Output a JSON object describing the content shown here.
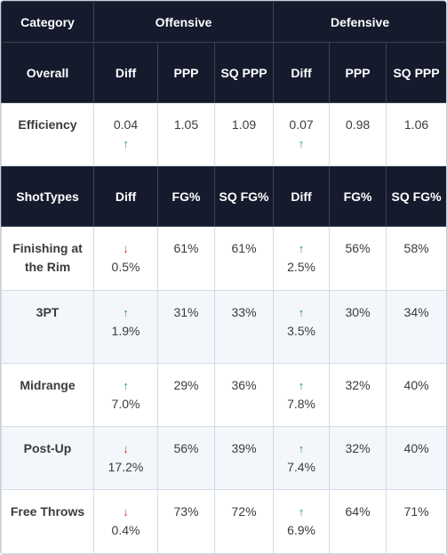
{
  "header": {
    "category": "Category",
    "offensive": "Offensive",
    "defensive": "Defensive"
  },
  "overall_header": {
    "label": "Overall",
    "off": [
      "Diff",
      "PPP",
      "SQ PPP"
    ],
    "def": [
      "Diff",
      "PPP",
      "SQ PPP"
    ]
  },
  "efficiency": {
    "label": "Efficiency",
    "off_diff": "0.04",
    "off_diff_dir": "up",
    "off_ppp": "1.05",
    "off_sq": "1.09",
    "def_diff": "0.07",
    "def_diff_dir": "up",
    "def_ppp": "0.98",
    "def_sq": "1.06"
  },
  "shot_header": {
    "label": "ShotTypes",
    "off": [
      "Diff",
      "FG%",
      "SQ FG%"
    ],
    "def": [
      "Diff",
      "FG%",
      "SQ FG%"
    ]
  },
  "arrows": {
    "up": "↑",
    "down": "↓"
  },
  "shot_rows": [
    {
      "label": "Finishing at the Rim",
      "off_dir": "down",
      "off_diff": "0.5%",
      "off_fg": "61%",
      "off_sq": "61%",
      "def_dir": "up",
      "def_diff": "2.5%",
      "def_fg": "56%",
      "def_sq": "58%"
    },
    {
      "label": "3PT",
      "off_dir": "up",
      "off_diff": "1.9%",
      "off_fg": "31%",
      "off_sq": "33%",
      "def_dir": "up",
      "def_diff": "3.5%",
      "def_fg": "30%",
      "def_sq": "34%"
    },
    {
      "label": "Midrange",
      "off_dir": "up",
      "off_diff": "7.0%",
      "off_fg": "29%",
      "off_sq": "36%",
      "def_dir": "up",
      "def_diff": "7.8%",
      "def_fg": "32%",
      "def_sq": "40%"
    },
    {
      "label": "Post-Up",
      "off_dir": "down",
      "off_diff": "17.2%",
      "off_fg": "56%",
      "off_sq": "39%",
      "def_dir": "up",
      "def_diff": "7.4%",
      "def_fg": "32%",
      "def_sq": "40%"
    },
    {
      "label": "Free Throws",
      "off_dir": "down",
      "off_diff": "0.4%",
      "off_fg": "73%",
      "off_sq": "72%",
      "def_dir": "up",
      "def_diff": "6.9%",
      "def_fg": "64%",
      "def_sq": "71%"
    }
  ],
  "colors": {
    "header_bg": "#151a2d",
    "up": "#2e9b4a",
    "down": "#e0362c",
    "zebra": "#f3f6fa"
  }
}
